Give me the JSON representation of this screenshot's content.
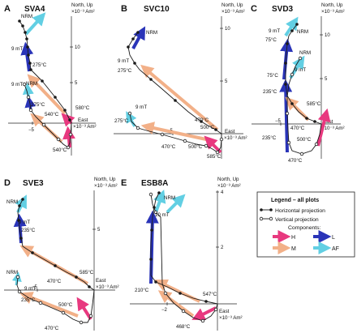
{
  "colors": {
    "H": "#e8397f",
    "M": "#f2b088",
    "L": "#2a34b8",
    "AF": "#62cfe3",
    "path": "#1a1a1a"
  },
  "legend": {
    "title": "Legend – all plots",
    "horizontal": "Horizontal projection",
    "vertical": "Vertical projection",
    "components_title": "Components:",
    "H": "H",
    "M": "M",
    "L": "L",
    "AF": "AF"
  },
  "panels": [
    {
      "letter": "A",
      "name": "SVA4",
      "axis_north": "North, Up",
      "axis_unit_y": "×10⁻³ Am²",
      "axis_east": "East",
      "axis_unit_x": "×10⁻³ Am²",
      "tick_y1": "10",
      "tick_y2": "5",
      "tick_x": "−5",
      "labels": [
        "NRM",
        "9 mT",
        "275°C",
        "9 mT",
        "NRM",
        "275°C",
        "580°C",
        "540°C",
        "540°C"
      ]
    },
    {
      "letter": "B",
      "name": "SVC10",
      "axis_north": "North, Up",
      "axis_unit_y": "×10⁻³ Am²",
      "axis_east": "East",
      "axis_unit_x": "×10⁻³ Am²",
      "tick_y1": "10",
      "tick_y2": "5",
      "tick_x": "−5",
      "labels": [
        "NRM",
        "9 mT",
        "275°C",
        "9 mT",
        "275°C",
        "470°C",
        "500°C",
        "470°C",
        "500°C",
        "585°C"
      ]
    },
    {
      "letter": "C",
      "name": "SVD3",
      "axis_north": "North, Up",
      "axis_unit_y": "×10⁻³ Am²",
      "axis_east": "East",
      "axis_unit_x": "×10⁻³ Am²",
      "tick_y1": "10",
      "tick_y2": "5",
      "tick_x": "−5",
      "labels": [
        "9 mT",
        "NRM",
        "75°C",
        "NRM",
        "75°C",
        "9 mT",
        "235°C",
        "585°C",
        "470°C",
        "235°C",
        "500°C",
        "470°C"
      ]
    },
    {
      "letter": "D",
      "name": "SVE3",
      "axis_north": "North, Up",
      "axis_unit_y": "×10⁻³ Am²",
      "axis_east": "East",
      "axis_unit_x": "×10⁻³ Am²",
      "tick_y1": "5",
      "tick_x": "−5",
      "labels": [
        "NRM",
        "9 mT",
        "235°C",
        "585°C",
        "470°C",
        "NRM",
        "9 mT",
        "235°C",
        "500°C",
        "470°C"
      ]
    },
    {
      "letter": "E",
      "name": "ESB8A",
      "axis_north": "North, Up",
      "axis_unit_y": "×10⁻³ Am²",
      "axis_east": "East",
      "axis_unit_x": "×10⁻³ Am²",
      "tick_y1": "4",
      "tick_y2": "2",
      "tick_x": "−2",
      "labels": [
        "NRM",
        "10 mT",
        "210°C",
        "547°C",
        "468°C"
      ]
    }
  ]
}
